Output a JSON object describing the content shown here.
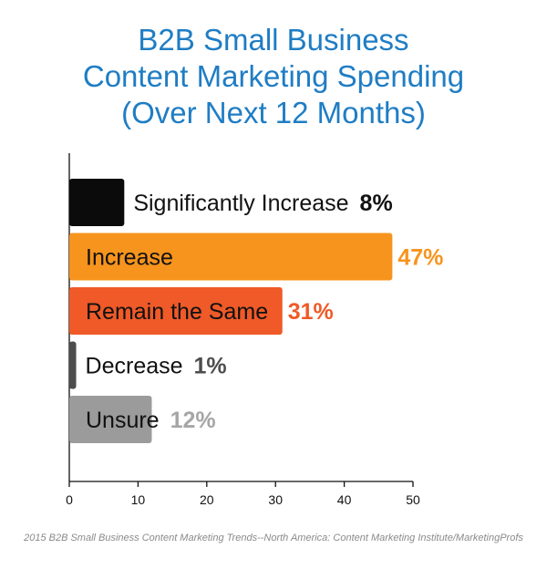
{
  "chart_data": {
    "type": "bar",
    "orientation": "horizontal",
    "title_lines": [
      "B2B Small Business",
      "Content Marketing Spending",
      "(Over Next 12 Months)"
    ],
    "categories": [
      "Significantly Increase",
      "Increase",
      "Remain the Same",
      "Decrease",
      "Unsure"
    ],
    "values": [
      8,
      47,
      31,
      1,
      12
    ],
    "value_labels": [
      "8%",
      "47%",
      "31%",
      "1%",
      "12%"
    ],
    "bar_colors": [
      "#0b0b0b",
      "#f7941d",
      "#ef5a28",
      "#4d4d4d",
      "#9b9b9b"
    ],
    "value_label_colors": [
      "#111111",
      "#f7941d",
      "#ef5a28",
      "#4d4d4d",
      "#a6a6a6"
    ],
    "label_inside_colors": [
      "#111111",
      "#111111",
      "#111111",
      "#111111",
      "#111111"
    ],
    "xlim": [
      0,
      50
    ],
    "xticks": [
      0,
      10,
      20,
      30,
      40,
      50
    ],
    "xlabel": "",
    "ylabel": "",
    "grid": false
  },
  "source": "2015 B2B Small Business Content Marketing Trends--North America: Content Marketing Institute/MarketingProfs"
}
